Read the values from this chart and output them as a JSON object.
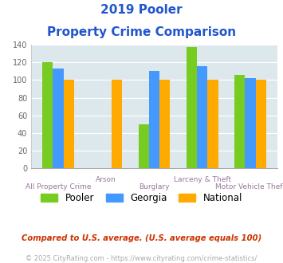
{
  "title_line1": "2019 Pooler",
  "title_line2": "Property Crime Comparison",
  "categories": [
    "All Property Crime",
    "Arson",
    "Burglary",
    "Larceny & Theft",
    "Motor Vehicle Theft"
  ],
  "pooler": [
    120,
    null,
    50,
    137,
    106
  ],
  "georgia": [
    113,
    null,
    110,
    116,
    102
  ],
  "national": [
    100,
    100,
    100,
    100,
    100
  ],
  "pooler_color": "#77cc22",
  "georgia_color": "#4499ff",
  "national_color": "#ffaa00",
  "title_color": "#2255cc",
  "xlabel_color": "#997799",
  "ylabel_color": "#666666",
  "ylim": [
    0,
    140
  ],
  "yticks": [
    0,
    20,
    40,
    60,
    80,
    100,
    120,
    140
  ],
  "bg_color": "#dce8ec",
  "footnote1": "Compared to U.S. average. (U.S. average equals 100)",
  "footnote2": "© 2025 CityRating.com - https://www.cityrating.com/crime-statistics/",
  "footnote1_color": "#cc3300",
  "footnote2_color": "#aaaaaa",
  "xlabels_top": [
    "",
    "Arson",
    "",
    "Larceny & Theft",
    ""
  ],
  "xlabels_bottom": [
    "All Property Crime",
    "",
    "Burglary",
    "",
    "Motor Vehicle Theft"
  ]
}
